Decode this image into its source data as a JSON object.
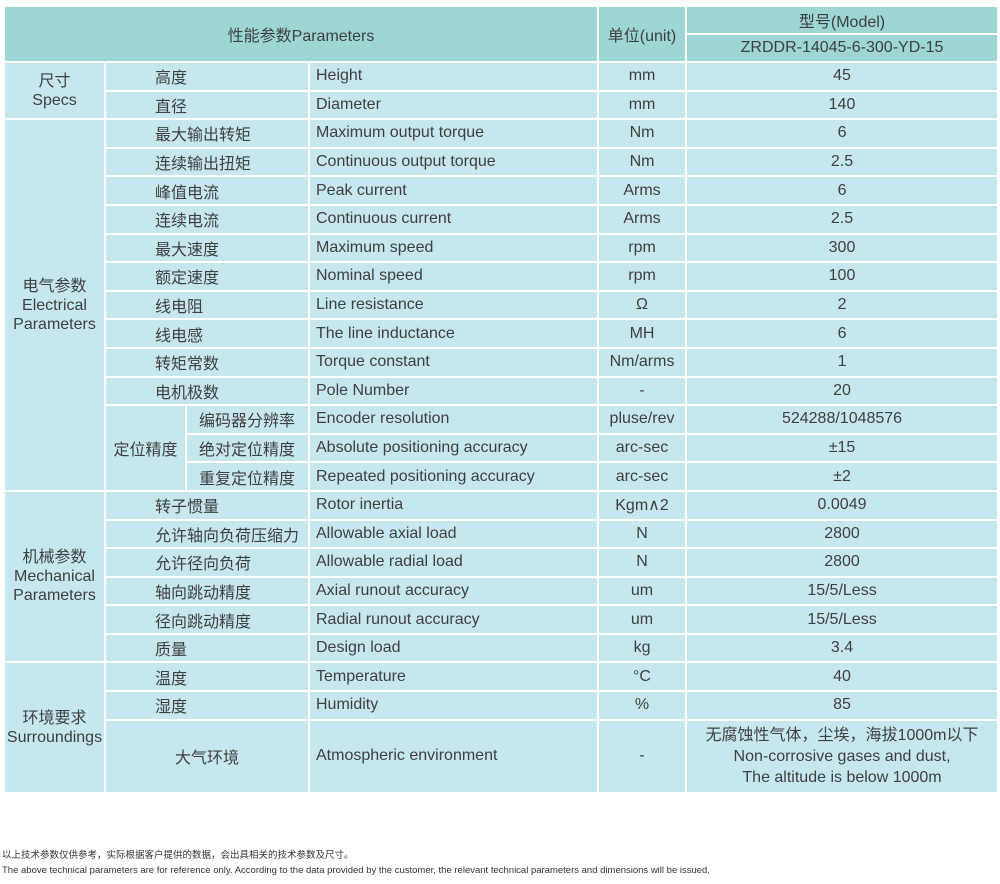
{
  "header": {
    "parameters": "性能参数Parameters",
    "unit": "单位(unit)",
    "model_label": "型号(Model)",
    "model": "ZRDDR-14045-6-300-YD-15"
  },
  "groups": {
    "specs": {
      "cn": "尺寸",
      "en": "Specs"
    },
    "electrical": {
      "cn": "电气参数",
      "en1": "Electrical",
      "en2": "Parameters"
    },
    "positioning": {
      "cn": "定位精度"
    },
    "mechanical": {
      "cn": "机械参数",
      "en1": "Mechanical",
      "en2": "Parameters"
    },
    "surroundings": {
      "cn": "环境要求",
      "en": "Surroundings"
    }
  },
  "rows": [
    {
      "cn": "高度",
      "en": "Height",
      "unit": "mm",
      "value": "45"
    },
    {
      "cn": "直径",
      "en": "Diameter",
      "unit": "mm",
      "value": "140"
    },
    {
      "cn": "最大输出转矩",
      "en": "Maximum output torque",
      "unit": "Nm",
      "value": "6"
    },
    {
      "cn": "连续输出扭矩",
      "en": "Continuous output torque",
      "unit": "Nm",
      "value": "2.5"
    },
    {
      "cn": "峰值电流",
      "en": "Peak current",
      "unit": "Arms",
      "value": "6"
    },
    {
      "cn": "连续电流",
      "en": "Continuous current",
      "unit": "Arms",
      "value": "2.5"
    },
    {
      "cn": "最大速度",
      "en": "Maximum speed",
      "unit": "rpm",
      "value": "300"
    },
    {
      "cn": "额定速度",
      "en": "Nominal speed",
      "unit": "rpm",
      "value": "100"
    },
    {
      "cn": "线电阻",
      "en": "Line resistance",
      "unit": "Ω",
      "value": "2"
    },
    {
      "cn": "线电感",
      "en": "The line inductance",
      "unit": "MH",
      "value": "6"
    },
    {
      "cn": "转矩常数",
      "en": "Torque constant",
      "unit": "Nm/arms",
      "value": "1"
    },
    {
      "cn": "电机极数",
      "en": "Pole Number",
      "unit": "-",
      "value": "20"
    },
    {
      "cn": "编码器分辨率",
      "en": "Encoder resolution",
      "unit": "pluse/rev",
      "value": "524288/1048576"
    },
    {
      "cn": "绝对定位精度",
      "en": "Absolute positioning accuracy",
      "unit": "arc-sec",
      "value": "±15"
    },
    {
      "cn": "重复定位精度",
      "en": "Repeated positioning accuracy",
      "unit": "arc-sec",
      "value": "±2"
    },
    {
      "cn": "转子惯量",
      "en": "Rotor inertia",
      "unit": "Kgm∧2",
      "value": "0.0049"
    },
    {
      "cn": "允许轴向负荷压缩力",
      "en": "Allowable axial load",
      "unit": "N",
      "value": "2800"
    },
    {
      "cn": "允许径向负荷",
      "en": "Allowable radial load",
      "unit": "N",
      "value": "2800"
    },
    {
      "cn": "轴向跳动精度",
      "en": "Axial runout accuracy",
      "unit": "um",
      "value": "15/5/Less"
    },
    {
      "cn": "径向跳动精度",
      "en": "Radial runout accuracy",
      "unit": "um",
      "value": "15/5/Less"
    },
    {
      "cn": "质量",
      "en": "Design load",
      "unit": "kg",
      "value": "3.4"
    },
    {
      "cn": "温度",
      "en": "Temperature",
      "unit": "°C",
      "value": "40"
    },
    {
      "cn": "湿度",
      "en": "Humidity",
      "unit": "%",
      "value": "85"
    },
    {
      "cn": "大气环境",
      "en": "Atmospheric environment",
      "unit": "-",
      "value1": "无腐蚀性气体，尘埃，海拔1000m以下",
      "value2": "Non-corrosive gases and dust,",
      "value3": "The altitude is below 1000m"
    }
  ],
  "notes": {
    "cn": "以上技术参数仅供参考，实际根据客户提供的数据，会出具相关的技术参数及尺寸。",
    "en": "The above technical parameters are for reference only. According to the data provided by the customer, the relevant technical parameters and dimensions will be issued."
  },
  "colors": {
    "header": "#9dd6d3",
    "body": "#c6e7ee"
  }
}
